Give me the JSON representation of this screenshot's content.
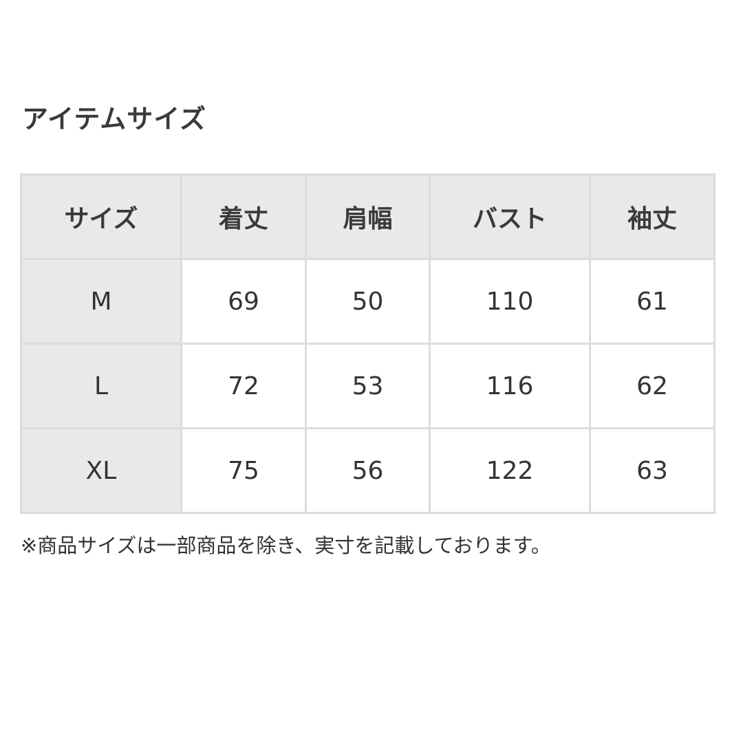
{
  "title": "アイテムサイズ",
  "table": {
    "headers": [
      "サイズ",
      "着丈",
      "肩幅",
      "バスト",
      "袖丈"
    ],
    "rows": [
      [
        "M",
        "69",
        "50",
        "110",
        "61"
      ],
      [
        "L",
        "72",
        "53",
        "116",
        "62"
      ],
      [
        "XL",
        "75",
        "56",
        "122",
        "63"
      ]
    ]
  },
  "note": "※商品サイズは一部商品を除き、実寸を記載しております。"
}
